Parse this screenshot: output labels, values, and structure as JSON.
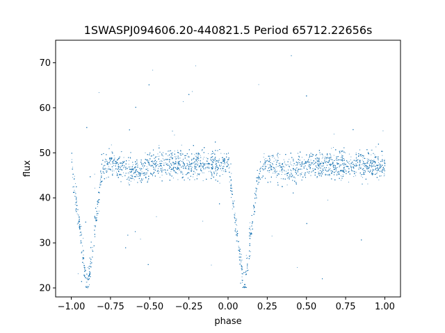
{
  "chart_data": {
    "type": "scatter",
    "title": "1SWASPJ094606.20-440821.5 Period 65712.22656s",
    "xlabel": "phase",
    "ylabel": "flux",
    "xlim": [
      -1.1,
      1.1
    ],
    "ylim": [
      18,
      75
    ],
    "xticks": [
      -1.0,
      -0.75,
      -0.5,
      -0.25,
      0.0,
      0.25,
      0.5,
      0.75,
      1.0
    ],
    "xtick_labels": [
      "−1.00",
      "−0.75",
      "−0.50",
      "−0.25",
      "0.00",
      "0.25",
      "0.50",
      "0.75",
      "1.00"
    ],
    "yticks": [
      20,
      30,
      40,
      50,
      60,
      70
    ],
    "ytick_labels": [
      "20",
      "30",
      "40",
      "50",
      "60",
      "70"
    ],
    "grid": false,
    "point_color": "#1f77b4",
    "series": [
      {
        "phase_range": [
          -1.0,
          1.0
        ],
        "baseline_flux": 47.5,
        "baseline_scatter": 2.2,
        "primary_eclipse_centers": [
          -0.9,
          0.1
        ],
        "primary_eclipse_min_flux": 20,
        "primary_eclipse_half_width": 0.1,
        "secondary_eclipse_centers": [
          -0.6,
          0.4
        ],
        "secondary_eclipse_depth": 1.5,
        "outlier_range": [
          20,
          72
        ]
      }
    ]
  }
}
